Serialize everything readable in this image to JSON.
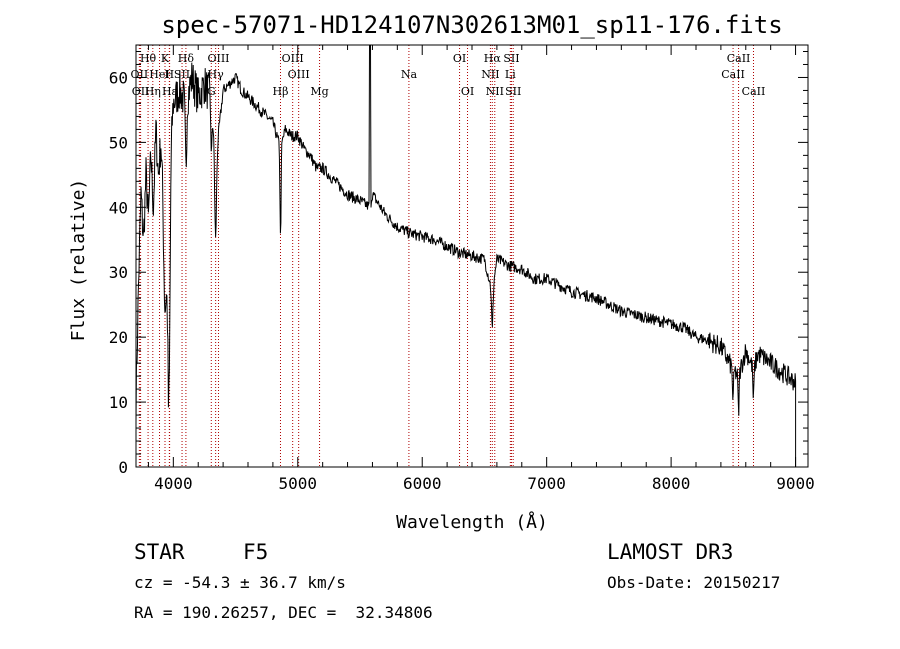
{
  "chart_data": {
    "type": "line",
    "title": "spec-57071-HD124107N302613M01_sp11-176.fits",
    "xlabel": "Wavelength (Å)",
    "ylabel": "Flux (relative)",
    "xlim": [
      3700,
      9100
    ],
    "ylim": [
      0,
      65
    ],
    "xticks": [
      4000,
      5000,
      6000,
      7000,
      8000,
      9000
    ],
    "yticks": [
      0,
      10,
      20,
      30,
      40,
      50,
      60
    ],
    "spectrum_anchors": {
      "wavelength": [
        3700,
        3720,
        3740,
        3760,
        3780,
        3800,
        3820,
        3840,
        3860,
        3880,
        3900,
        3920,
        3940,
        3960,
        3980,
        4000,
        4050,
        4100,
        4150,
        4200,
        4250,
        4300,
        4340,
        4400,
        4450,
        4500,
        4550,
        4600,
        4650,
        4700,
        4750,
        4800,
        4861,
        4900,
        4950,
        5000,
        5050,
        5100,
        5150,
        5200,
        5250,
        5300,
        5400,
        5500,
        5580,
        5600,
        5700,
        5800,
        5900,
        6000,
        6100,
        6200,
        6300,
        6400,
        6500,
        6563,
        6600,
        6700,
        6800,
        6900,
        7000,
        7100,
        7200,
        7300,
        7400,
        7500,
        7600,
        7700,
        7800,
        7900,
        8000,
        8100,
        8200,
        8300,
        8400,
        8498,
        8542,
        8600,
        8662,
        8700,
        8800,
        8900,
        9000
      ],
      "flux": [
        10,
        28,
        42,
        35,
        45,
        38,
        48,
        40,
        52,
        45,
        50,
        42,
        38,
        22,
        50,
        56,
        58,
        56,
        60,
        57,
        59,
        57,
        47,
        58,
        59,
        60,
        58,
        57,
        56,
        55,
        54,
        53,
        49,
        52,
        51,
        51,
        49,
        48,
        46,
        46,
        45,
        44,
        42,
        41,
        40,
        42,
        39,
        37,
        36,
        35.5,
        35,
        34,
        33,
        32.5,
        32,
        27,
        32,
        31,
        30.5,
        29,
        29,
        28,
        27,
        26.5,
        26,
        25,
        24,
        23.5,
        23,
        22.5,
        22,
        21.5,
        20,
        19.5,
        18.5,
        15,
        14,
        18,
        15,
        17.5,
        16,
        14.5,
        13
      ]
    },
    "spectral_lines": [
      {
        "label": "Hθ",
        "wavelength": 3797,
        "row": 1
      },
      {
        "label": "K",
        "wavelength": 3933,
        "row": 1
      },
      {
        "label": "Hδ",
        "wavelength": 4101,
        "row": 1
      },
      {
        "label": "OIII",
        "wavelength": 4363,
        "row": 1
      },
      {
        "label": "OIII",
        "wavelength": 4959,
        "row": 1
      },
      {
        "label": "OI",
        "wavelength": 6300,
        "row": 1
      },
      {
        "label": "Hα",
        "wavelength": 6563,
        "row": 1
      },
      {
        "label": "SII",
        "wavelength": 6717,
        "row": 1
      },
      {
        "label": "CaII",
        "wavelength": 8542,
        "row": 1
      },
      {
        "label": "OII",
        "wavelength": 3727,
        "row": 2
      },
      {
        "label": "H",
        "wavelength": 3968,
        "row": 2
      },
      {
        "label": "HeI",
        "wavelength": 3889,
        "row": 2
      },
      {
        "label": "SII",
        "wavelength": 4070,
        "row": 2
      },
      {
        "label": "Hγ",
        "wavelength": 4340,
        "row": 2
      },
      {
        "label": "OIII",
        "wavelength": 5007,
        "row": 2
      },
      {
        "label": "Na",
        "wavelength": 5893,
        "row": 2
      },
      {
        "label": "NII",
        "wavelength": 6548,
        "row": 2
      },
      {
        "label": "Li",
        "wavelength": 6708,
        "row": 2
      },
      {
        "label": "CaII",
        "wavelength": 8498,
        "row": 2
      },
      {
        "label": "OII",
        "wavelength": 3737,
        "row": 3
      },
      {
        "label": "Hη",
        "wavelength": 3835,
        "row": 3
      },
      {
        "label": "Hε",
        "wavelength": 3970,
        "row": 3
      },
      {
        "label": "G",
        "wavelength": 4305,
        "row": 3
      },
      {
        "label": "Hβ",
        "wavelength": 4861,
        "row": 3
      },
      {
        "label": "Mg",
        "wavelength": 5175,
        "row": 3
      },
      {
        "label": "OI",
        "wavelength": 6364,
        "row": 3
      },
      {
        "label": "NII",
        "wavelength": 6583,
        "row": 3
      },
      {
        "label": "SII",
        "wavelength": 6731,
        "row": 3
      },
      {
        "label": "CaII",
        "wavelength": 8662,
        "row": 3
      }
    ]
  },
  "info": {
    "object_class": "STAR",
    "subclass": "F5",
    "survey": "LAMOST DR3",
    "redshift": "cz = -54.3 ± 36.7 km/s",
    "obs_date": "Obs-Date: 20150217",
    "coords": "RA = 190.26257, DEC =  32.34806"
  }
}
